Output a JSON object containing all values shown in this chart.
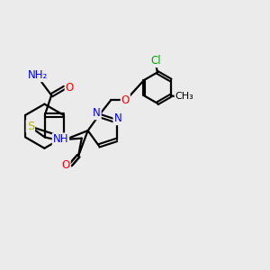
{
  "bg_color": "#ebebeb",
  "bond_color": "#000000",
  "S_color": "#b8b800",
  "N_color": "#0000ff",
  "O_color": "#ff0000",
  "Cl_color": "#00aa00",
  "lw": 1.6,
  "fs": 8.5,
  "xlim": [
    0,
    12
  ],
  "ylim": [
    0,
    10
  ]
}
